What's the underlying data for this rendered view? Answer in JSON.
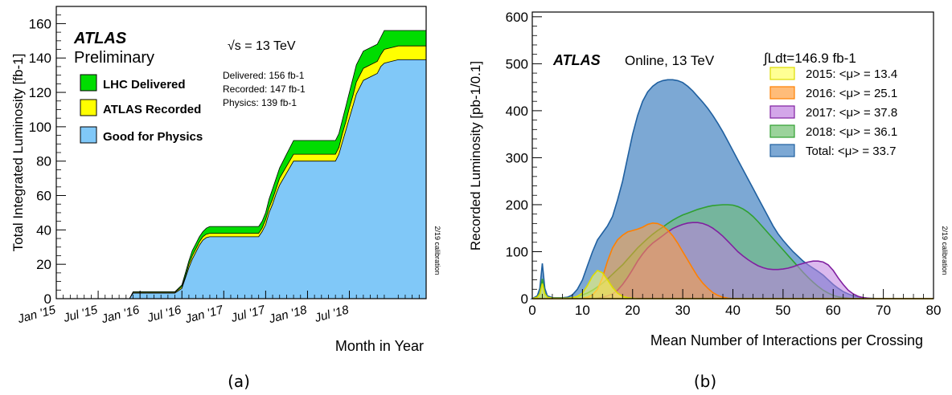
{
  "chart_data": [
    {
      "type": "area",
      "panel_label": "(a)",
      "experiment": "ATLAS",
      "status": "Preliminary",
      "energy_label": "√s = 13 TeV",
      "ylabel": "Total Integrated Luminosity [fb-1]",
      "xlabel": "Month in Year",
      "ylim": [
        0,
        170
      ],
      "y_ticks": [
        0,
        20,
        40,
        60,
        80,
        100,
        120,
        140,
        160
      ],
      "x_ticks": [
        "Jan '15",
        "Jul '15",
        "Jan '16",
        "Jul '16",
        "Jan '17",
        "Jul '17",
        "Jan '18",
        "Jul '18"
      ],
      "x_tick_months": [
        0,
        6,
        12,
        18,
        24,
        30,
        36,
        42
      ],
      "xlim_months": [
        0,
        53
      ],
      "legend": [
        {
          "label": "LHC Delivered",
          "color": "#00dd00"
        },
        {
          "label": "ATLAS Recorded",
          "color": "#ffff00"
        },
        {
          "label": "Good for Physics",
          "color": "#80c8f8"
        }
      ],
      "totals": [
        "Delivered: 156 fb-1",
        "Recorded: 147 fb-1",
        "Physics: 139 fb-1"
      ],
      "side_note": "2/19 calibration",
      "x_months": [
        0,
        5,
        6,
        10,
        10.5,
        11,
        17,
        18,
        18.5,
        19,
        19.5,
        20,
        20.5,
        21,
        21.5,
        22,
        29,
        29.5,
        30,
        30.5,
        31,
        31.5,
        32,
        33,
        34,
        40,
        40.5,
        41,
        41.5,
        42,
        42.5,
        43,
        44,
        46,
        46.5,
        47,
        48,
        49,
        50,
        53
      ],
      "series": [
        {
          "name": "LHC Delivered",
          "values": [
            0,
            0,
            0,
            0,
            0,
            4,
            4,
            8,
            15,
            22,
            28,
            32,
            36,
            39,
            41,
            42,
            42,
            45,
            50,
            58,
            64,
            70,
            76,
            84,
            92,
            92,
            96,
            104,
            112,
            120,
            128,
            136,
            144,
            148,
            152,
            156,
            156,
            156,
            156,
            156
          ]
        },
        {
          "name": "ATLAS Recorded",
          "values": [
            0,
            0,
            0,
            0,
            0,
            3.7,
            3.7,
            7,
            13,
            20,
            25,
            29,
            33,
            36,
            37.5,
            38,
            38,
            41,
            46,
            53,
            58,
            64,
            70,
            77,
            84,
            84,
            88,
            96,
            103,
            111,
            118,
            126,
            134,
            138,
            142,
            145,
            146,
            147,
            147,
            147
          ]
        },
        {
          "name": "Good for Physics",
          "values": [
            0,
            0,
            0,
            0,
            0,
            3.2,
            3.2,
            6,
            12,
            18,
            23,
            27,
            31,
            34,
            35.5,
            36,
            36,
            39,
            43,
            50,
            55,
            61,
            66,
            73,
            80,
            80,
            84,
            91,
            98,
            105,
            112,
            119,
            127,
            131,
            135,
            137,
            138,
            139,
            139,
            139
          ]
        }
      ]
    },
    {
      "type": "area",
      "panel_label": "(b)",
      "experiment": "ATLAS",
      "status": "Online, 13 TeV",
      "lumi_label": "∫Ldt=146.9 fb-1",
      "ylabel": "Recorded Luminosity [pb-1/0.1]",
      "xlabel": "Mean Number of Interactions per Crossing",
      "xlim": [
        0,
        80
      ],
      "ylim": [
        0,
        610
      ],
      "x_ticks": [
        0,
        10,
        20,
        30,
        40,
        50,
        60,
        70,
        80
      ],
      "y_ticks": [
        0,
        100,
        200,
        300,
        400,
        500,
        600
      ],
      "side_note": "2/19 calibration",
      "x": [
        0,
        1,
        1.5,
        2,
        2.5,
        3,
        4,
        5,
        6,
        7,
        8,
        9,
        10,
        11,
        12,
        13,
        14,
        15,
        16,
        17,
        18,
        19,
        20,
        21,
        22,
        23,
        24,
        25,
        26,
        27,
        28,
        29,
        30,
        31,
        32,
        33,
        34,
        35,
        36,
        37,
        38,
        39,
        40,
        41,
        42,
        43,
        44,
        45,
        46,
        47,
        48,
        49,
        50,
        51,
        52,
        53,
        54,
        55,
        56,
        57,
        58,
        59,
        60,
        61,
        62,
        63,
        64,
        65,
        66,
        67,
        68,
        69,
        70,
        72,
        75,
        80
      ],
      "series": [
        {
          "name": "2015: <μ> = 13.4",
          "color": "#ffff66",
          "edge": "#dddd00",
          "values": [
            0,
            3,
            10,
            32,
            10,
            3,
            1,
            1,
            1,
            1,
            2,
            5,
            12,
            28,
            48,
            60,
            55,
            40,
            24,
            12,
            5,
            2,
            1,
            0,
            0,
            0,
            0,
            0,
            0,
            0,
            0,
            0,
            0,
            0,
            0,
            0,
            0,
            0,
            0,
            0,
            0,
            0,
            0,
            0,
            0,
            0,
            0,
            0,
            0,
            0,
            0,
            0,
            0,
            0,
            0,
            0,
            0,
            0,
            0,
            0,
            0,
            0,
            0,
            0,
            0,
            0,
            0,
            0,
            0,
            0,
            0,
            0,
            0,
            0,
            0,
            0
          ]
        },
        {
          "name": "2016: <μ> = 25.1",
          "color": "#ffa040",
          "edge": "#ff8000",
          "values": [
            0,
            0,
            0,
            0,
            0,
            0,
            0,
            0,
            0,
            0,
            0,
            0,
            1,
            3,
            8,
            20,
            45,
            80,
            108,
            125,
            135,
            142,
            145,
            148,
            152,
            158,
            161,
            160,
            155,
            146,
            134,
            118,
            100,
            82,
            64,
            47,
            33,
            22,
            13,
            7,
            3,
            1,
            0,
            0,
            0,
            0,
            0,
            0,
            0,
            0,
            0,
            0,
            0,
            0,
            0,
            0,
            0,
            0,
            0,
            0,
            0,
            0,
            0,
            0,
            0,
            0,
            0,
            0,
            0,
            0,
            0,
            0,
            0,
            0,
            0,
            0
          ]
        },
        {
          "name": "2017: <μ> = 37.8",
          "color": "#c080e0",
          "edge": "#8020a0",
          "values": [
            0,
            0,
            0,
            0,
            0,
            0,
            0,
            0,
            0,
            0,
            0,
            0,
            0,
            0,
            0,
            1,
            3,
            6,
            10,
            18,
            30,
            45,
            62,
            80,
            95,
            108,
            118,
            126,
            134,
            142,
            149,
            154,
            158,
            161,
            162,
            162,
            160,
            156,
            150,
            142,
            133,
            122,
            111,
            100,
            91,
            83,
            76,
            70,
            66,
            63,
            62,
            62,
            63,
            65,
            68,
            72,
            75,
            78,
            80,
            80,
            78,
            72,
            60,
            44,
            30,
            18,
            10,
            5,
            2,
            1,
            0,
            0,
            0,
            0,
            0,
            0
          ]
        },
        {
          "name": "2018: <μ> = 36.1",
          "color": "#70c070",
          "edge": "#30a030",
          "values": [
            0,
            3,
            12,
            42,
            12,
            3,
            1,
            1,
            1,
            1,
            2,
            4,
            8,
            12,
            18,
            25,
            33,
            42,
            52,
            62,
            72,
            84,
            96,
            108,
            118,
            128,
            137,
            145,
            152,
            160,
            167,
            173,
            178,
            182,
            186,
            190,
            193,
            196,
            198,
            199,
            200,
            200,
            199,
            196,
            191,
            184,
            175,
            164,
            152,
            140,
            128,
            116,
            104,
            92,
            80,
            68,
            56,
            45,
            35,
            26,
            18,
            12,
            7,
            4,
            2,
            1,
            0,
            0,
            0,
            0,
            0,
            0,
            0,
            0,
            0,
            0
          ]
        },
        {
          "name": "Total: <μ> = 33.7",
          "color": "#7ca8d4",
          "edge": "#2060a0",
          "values": [
            0,
            6,
            22,
            75,
            22,
            6,
            2,
            2,
            2,
            3,
            8,
            20,
            40,
            70,
            100,
            125,
            140,
            155,
            175,
            210,
            250,
            300,
            350,
            390,
            420,
            440,
            452,
            460,
            464,
            466,
            466,
            464,
            460,
            452,
            442,
            430,
            418,
            405,
            390,
            373,
            355,
            335,
            315,
            295,
            275,
            255,
            235,
            215,
            195,
            175,
            155,
            138,
            124,
            112,
            100,
            90,
            80,
            72,
            65,
            58,
            50,
            40,
            30,
            22,
            15,
            10,
            6,
            4,
            2,
            1,
            0.5,
            0,
            0,
            0,
            0,
            0
          ]
        }
      ]
    }
  ]
}
